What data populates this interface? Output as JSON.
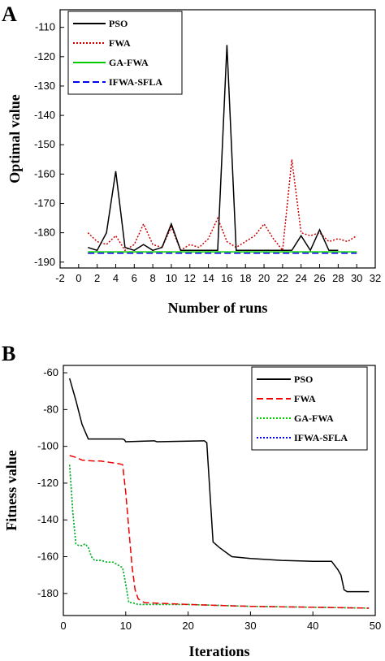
{
  "chart_data": [
    {
      "panel": "A",
      "type": "line",
      "xlabel": "Number of runs",
      "ylabel": "Optimal value",
      "xlim": [
        -2,
        32
      ],
      "ylim": [
        -192,
        -104
      ],
      "xticks": [
        -2,
        0,
        2,
        4,
        6,
        8,
        10,
        12,
        14,
        16,
        18,
        20,
        22,
        24,
        26,
        28,
        30,
        32
      ],
      "yticks": [
        -190,
        -180,
        -170,
        -160,
        -150,
        -140,
        -130,
        -120,
        -110
      ],
      "legend_position": "top-center",
      "series": [
        {
          "name": "PSO",
          "color": "#000000",
          "style": "solid",
          "x": [
            1,
            2,
            3,
            4,
            5,
            6,
            7,
            8,
            9,
            10,
            11,
            12,
            13,
            14,
            15,
            16,
            17,
            18,
            19,
            20,
            21,
            22,
            23,
            24,
            25,
            26,
            27,
            28
          ],
          "y": [
            -185,
            -186,
            -180,
            -159,
            -185,
            -186,
            -184,
            -186,
            -185,
            -177,
            -186,
            -186,
            -186,
            -186,
            -186,
            -116,
            -186,
            -186,
            -186,
            -186,
            -186,
            -186,
            -186,
            -181,
            -186,
            -179,
            -186,
            -186
          ]
        },
        {
          "name": "FWA",
          "color": "#cc0000",
          "style": "dotted",
          "x": [
            1,
            2,
            3,
            4,
            5,
            6,
            7,
            8,
            9,
            10,
            11,
            12,
            13,
            14,
            15,
            16,
            17,
            18,
            19,
            20,
            21,
            22,
            23,
            24,
            25,
            26,
            27,
            28,
            29,
            30
          ],
          "y": [
            -180,
            -183,
            -184,
            -181,
            -186,
            -184,
            -177,
            -184,
            -185,
            -178,
            -186,
            -184,
            -185,
            -182,
            -175,
            -183,
            -185,
            -183,
            -181,
            -177,
            -182,
            -186,
            -155,
            -180,
            -181,
            -180,
            -183,
            -182,
            -183,
            -181
          ]
        },
        {
          "name": "GA-FWA",
          "color": "#00cc00",
          "style": "solid",
          "x": [
            1,
            30
          ],
          "y": [
            -186.5,
            -186.5
          ]
        },
        {
          "name": "IFWA-SFLA",
          "color": "#0000ee",
          "style": "dashed",
          "x": [
            1,
            30
          ],
          "y": [
            -187,
            -187
          ]
        }
      ]
    },
    {
      "panel": "B",
      "type": "line",
      "xlabel": "Iterations",
      "ylabel": "Fitness value",
      "xlim": [
        0,
        50
      ],
      "ylim": [
        -192,
        -56
      ],
      "xticks": [
        0,
        10,
        20,
        30,
        40,
        50
      ],
      "yticks": [
        -60,
        -80,
        -100,
        -120,
        -140,
        -160,
        -180
      ],
      "legend_position": "top-right",
      "series": [
        {
          "name": "PSO",
          "color": "#000000",
          "style": "solid",
          "x": [
            1,
            2,
            3,
            4,
            5,
            9.5,
            9.8,
            10,
            14.5,
            14.6,
            15,
            22.5,
            22.6,
            23,
            24,
            25,
            27,
            30,
            35,
            40,
            43,
            44,
            44.5,
            45,
            45.5,
            49
          ],
          "y": [
            -63,
            -75,
            -88,
            -96,
            -96,
            -96,
            -96.5,
            -97.5,
            -97,
            -97,
            -97.5,
            -97,
            -97,
            -98,
            -152,
            -155,
            -160,
            -161,
            -162,
            -162.5,
            -162.5,
            -167,
            -170,
            -178,
            -179,
            -179
          ]
        },
        {
          "name": "FWA",
          "color": "#ee0000",
          "style": "dashed",
          "x": [
            1,
            2,
            3,
            5,
            6,
            7,
            8,
            9,
            9.5,
            10,
            10.5,
            11,
            11.5,
            12,
            13,
            20,
            30,
            40,
            49
          ],
          "y": [
            -105,
            -106,
            -107.5,
            -108,
            -108,
            -108.5,
            -109,
            -109.5,
            -110,
            -125,
            -145,
            -165,
            -178,
            -183,
            -185,
            -186,
            -187,
            -187.5,
            -188
          ]
        },
        {
          "name": "GA-FWA",
          "color": "#00cc00",
          "style": "dotted",
          "x": [
            1,
            1.5,
            2,
            2.5,
            3,
            3.5,
            4,
            4.5,
            5,
            6,
            7,
            8,
            9,
            9.5,
            10,
            10.5,
            11,
            12,
            20,
            30,
            40,
            49
          ],
          "y": [
            -110,
            -135,
            -153,
            -154,
            -154,
            -153,
            -155,
            -160,
            -162,
            -162,
            -163,
            -163,
            -165,
            -166,
            -175,
            -185,
            -185,
            -186,
            -186,
            -187,
            -187.5,
            -188
          ]
        },
        {
          "name": "IFWA-SFLA",
          "color": "#0000ee",
          "style": "dotted",
          "x": [
            1,
            1.5,
            2,
            2.5,
            3,
            3.5,
            4,
            4.5,
            5,
            6,
            7,
            8,
            9,
            9.5,
            10,
            10.5,
            11,
            12,
            20,
            30,
            40,
            49
          ],
          "y": [
            -110,
            -135,
            -153,
            -154,
            -154,
            -153,
            -155,
            -160,
            -162,
            -162,
            -163,
            -163,
            -165,
            -166,
            -175,
            -185,
            -185,
            -186,
            -186,
            -187,
            -187.5,
            -188
          ]
        }
      ]
    }
  ]
}
